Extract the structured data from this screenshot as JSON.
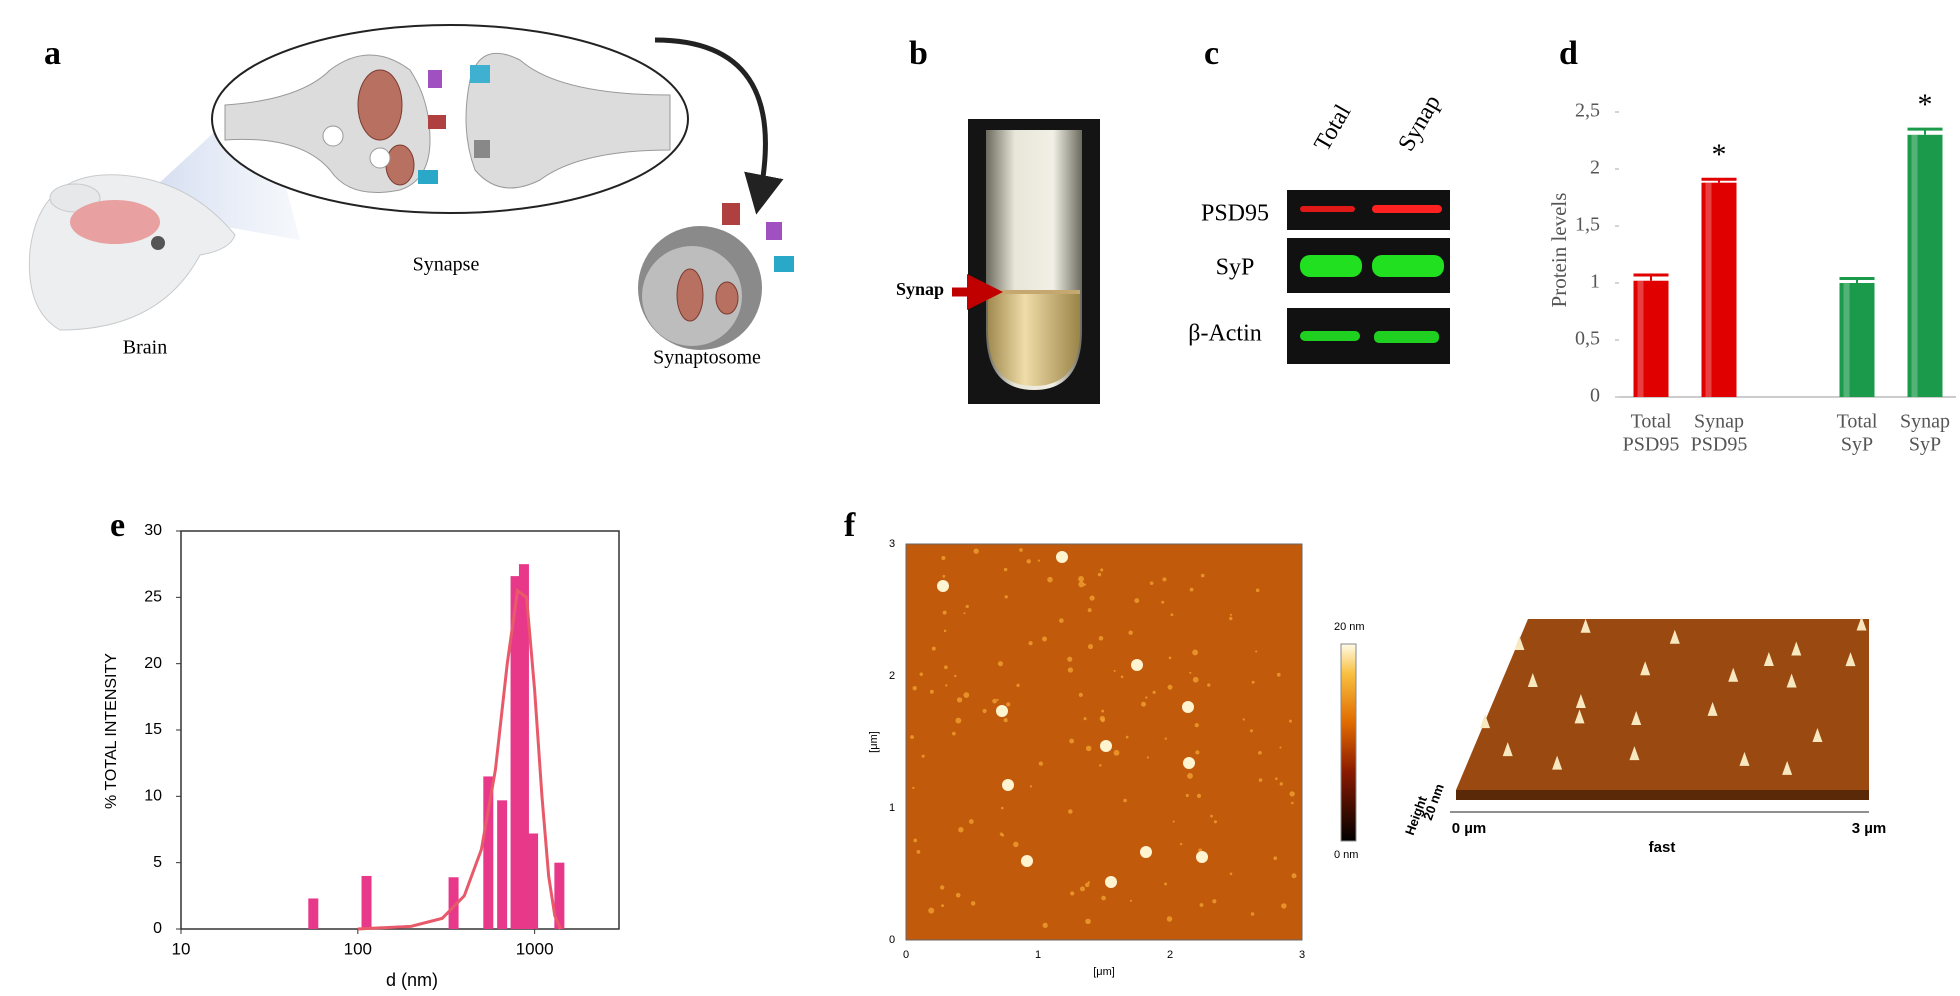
{
  "panels": {
    "a": {
      "label": "a",
      "synapse": "Synapse",
      "brain": "Brain",
      "synaptosome": "Synaptosome"
    },
    "b": {
      "label": "b",
      "band": "Synap"
    },
    "c": {
      "label": "c",
      "columns": [
        "Total",
        "Synap"
      ],
      "rows": [
        "PSD95",
        "SyP",
        "β-Actin"
      ]
    },
    "f": {
      "label": "f",
      "axis_ticks": [
        "0",
        "1",
        "2",
        "3"
      ],
      "axis_unit": "[μm]",
      "colorbar": [
        "20 nm",
        "0 nm"
      ],
      "view3d": {
        "start": "0 µm",
        "end": "3 µm",
        "axis": "fast",
        "height_label": "Height",
        "height_scale": "20 nm"
      }
    }
  },
  "chart_data": [
    {
      "panel": "d",
      "type": "bar",
      "y_label": "Protein levels",
      "categories": [
        [
          "Total",
          "PSD95"
        ],
        [
          "Synap",
          "PSD95"
        ],
        [
          "Total",
          "SyP"
        ],
        [
          "Synap",
          "SyP"
        ]
      ],
      "values": [
        1.02,
        1.88,
        1.0,
        2.3
      ],
      "errors": [
        0.05,
        0.03,
        0.04,
        0.05
      ],
      "colors": [
        "#e00000",
        "#e00000",
        "#1a9a4a",
        "#1a9a4a"
      ],
      "annotations": [
        "*",
        "*"
      ],
      "ylim": [
        0,
        2.5
      ],
      "yticks": [
        0,
        {
          "value": 0.5,
          "label": "0,5"
        },
        1,
        {
          "value": 1.5,
          "label": "1,5"
        },
        2,
        {
          "value": 2.5,
          "label": "2,5"
        }
      ]
    },
    {
      "panel": "e",
      "type": "bar",
      "x_label": "d (nm)",
      "y_label": "% TOTAL INTENSITY",
      "xscale": "log",
      "x": [
        56,
        112,
        348,
        547,
        655,
        780,
        870,
        980,
        1380
      ],
      "values": [
        2.3,
        4,
        3.9,
        11.5,
        9.7,
        26.6,
        27.5,
        7.2,
        5
      ],
      "color": "#e8388a",
      "line": {
        "x": [
          100,
          200,
          300,
          400,
          500,
          600,
          700,
          800,
          900,
          1000,
          1100,
          1200,
          1300,
          1400
        ],
        "values": [
          0,
          0.2,
          0.8,
          2.5,
          6,
          12,
          20,
          25.5,
          25,
          18,
          10,
          4,
          1,
          0
        ],
        "color": "#e85a6a"
      },
      "xlim": [
        10,
        3000
      ],
      "xticks": [
        10,
        100,
        1000
      ],
      "ylim": [
        0,
        30
      ],
      "yticks": [
        0,
        5,
        10,
        15,
        20,
        25,
        30
      ]
    }
  ]
}
